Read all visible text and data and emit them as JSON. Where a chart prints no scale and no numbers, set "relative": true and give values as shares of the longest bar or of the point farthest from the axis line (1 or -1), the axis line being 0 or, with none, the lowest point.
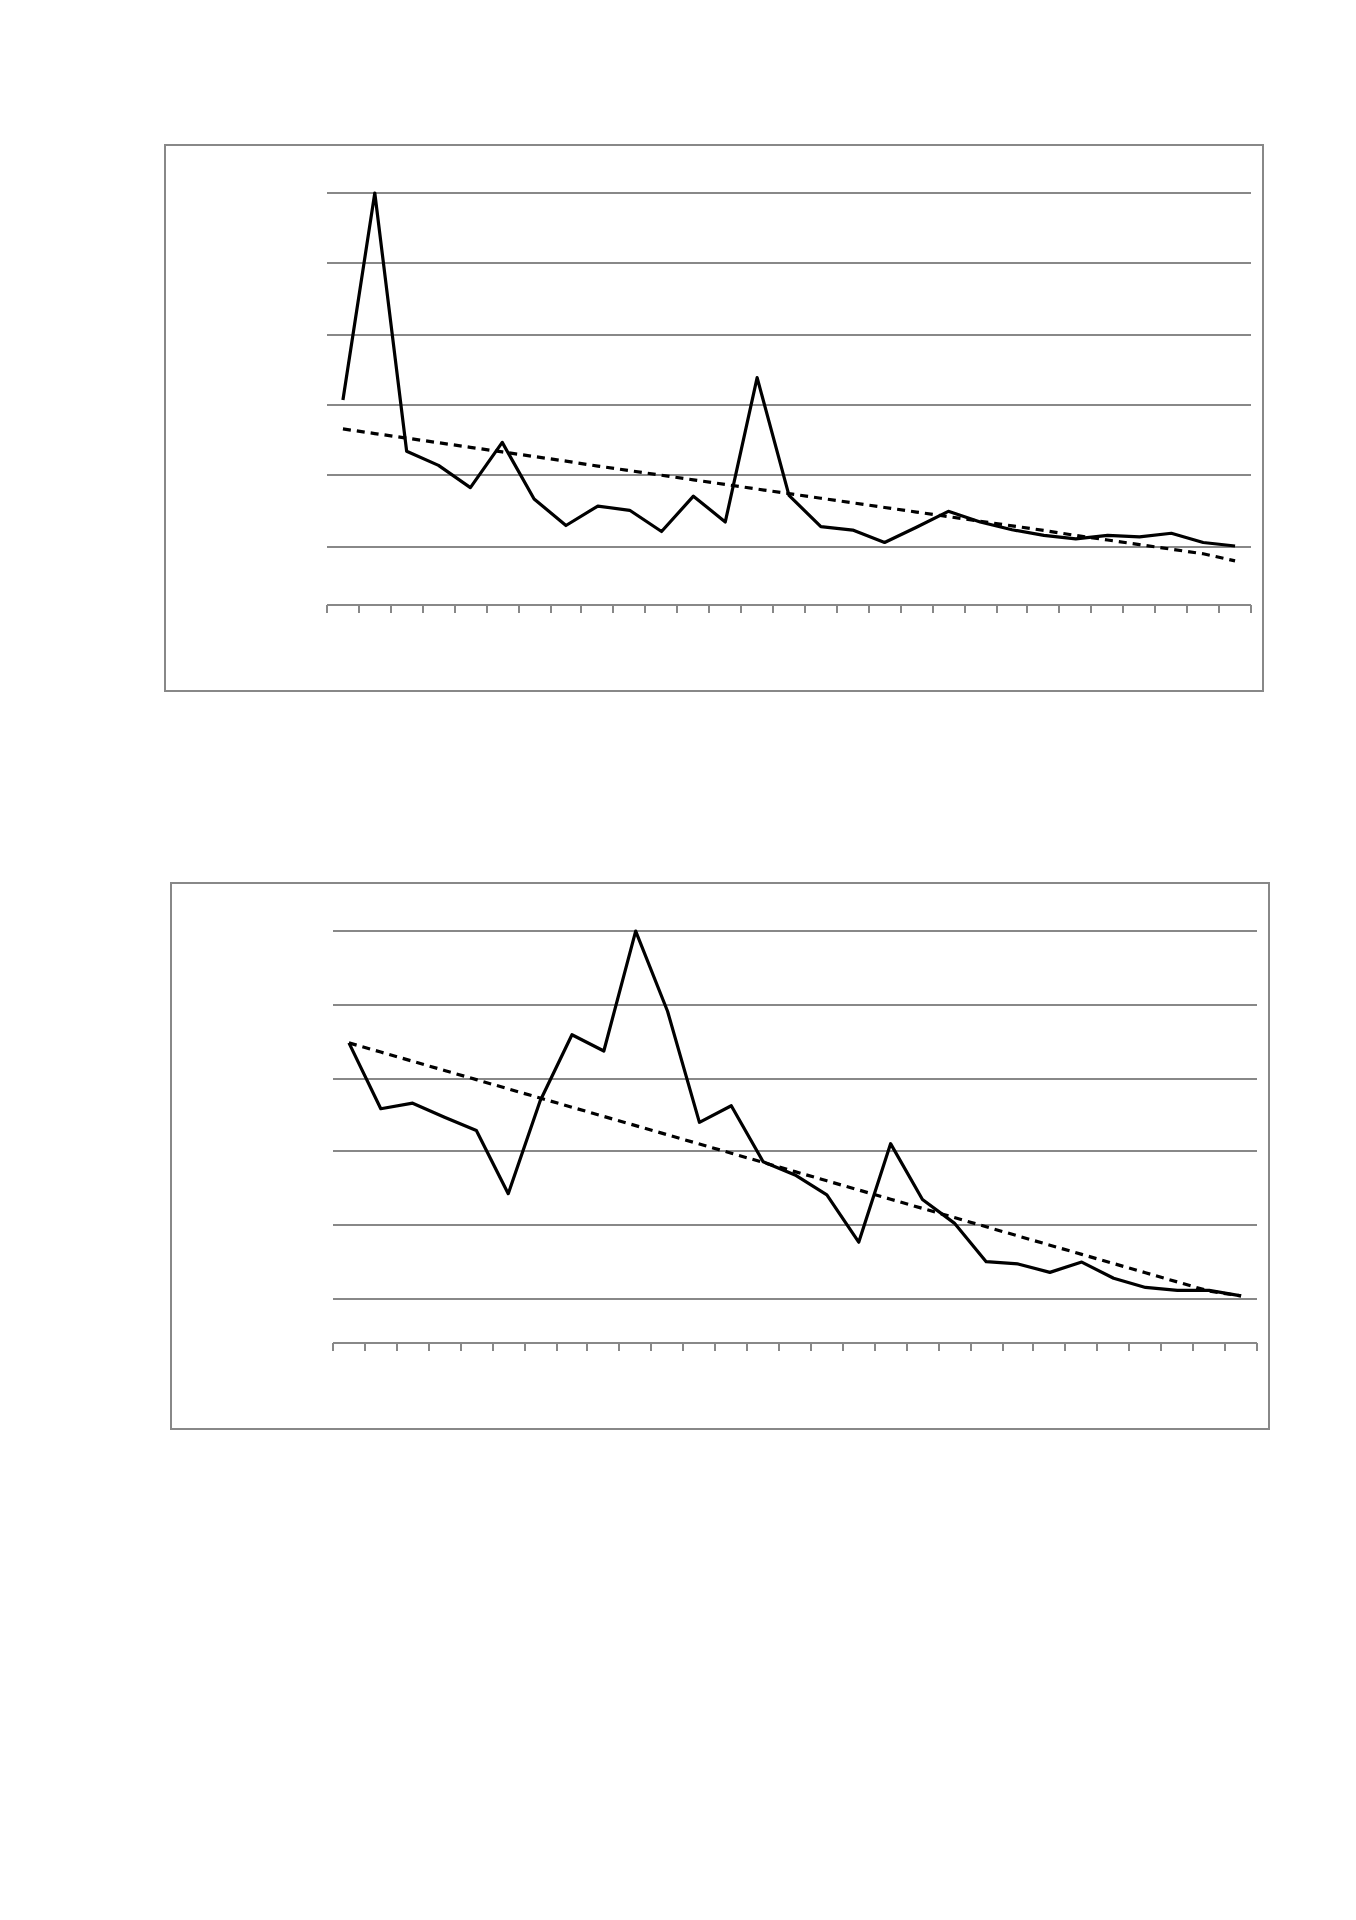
{
  "chart_data": [
    {
      "type": "line",
      "relative": true,
      "categories": [
        null,
        null,
        null,
        null,
        null,
        null,
        null,
        null,
        null,
        null,
        null,
        null,
        null,
        null,
        null,
        null,
        null,
        null,
        null,
        null,
        null,
        null,
        null,
        null,
        null,
        null,
        null,
        null,
        null
      ],
      "grid": "y",
      "tick_labels": false,
      "series": [
        {
          "color": "#000000",
          "line_style": "solid",
          "values": [
            0.415,
            1,
            0.27,
            0.23,
            0.167,
            0.295,
            0.135,
            0.06,
            0.115,
            0.103,
            0.043,
            0.143,
            0.07,
            0.478,
            0.145,
            0.057,
            0.047,
            0.012,
            0.055,
            0.1,
            0.07,
            0.048,
            0.032,
            0.022,
            0.032,
            0.028,
            0.038,
            0.012,
            0.002
          ]
        },
        {
          "color": "#000000",
          "line_style": "dashed",
          "values": [
            0.333,
            0.32,
            0.307,
            0.294,
            0.281,
            0.268,
            0.255,
            0.242,
            0.228,
            0.215,
            0.202,
            0.189,
            0.176,
            0.163,
            0.15,
            0.137,
            0.124,
            0.111,
            0.098,
            0.085,
            0.072,
            0.059,
            0.046,
            0.032,
            0.019,
            0.006,
            -0.007,
            -0.02,
            -0.04
          ]
        }
      ]
    },
    {
      "type": "line",
      "relative": true,
      "categories": [
        null,
        null,
        null,
        null,
        null,
        null,
        null,
        null,
        null,
        null,
        null,
        null,
        null,
        null,
        null,
        null,
        null,
        null,
        null,
        null,
        null,
        null,
        null,
        null,
        null,
        null,
        null,
        null,
        null
      ],
      "grid": "y",
      "tick_labels": false,
      "series": [
        {
          "color": "#000000",
          "line_style": "solid",
          "values": [
            0.696,
            0.517,
            0.532,
            0.494,
            0.458,
            0.286,
            0.538,
            0.718,
            0.674,
            1,
            0.782,
            0.48,
            0.525,
            0.373,
            0.337,
            0.283,
            0.154,
            0.422,
            0.27,
            0.206,
            0.101,
            0.095,
            0.072,
            0.1,
            0.056,
            0.031,
            0.023,
            0.023,
            0.008
          ]
        },
        {
          "color": "#000000",
          "line_style": "dashed",
          "values": [
            0.696,
            0.671,
            0.646,
            0.621,
            0.596,
            0.571,
            0.546,
            0.521,
            0.496,
            0.471,
            0.446,
            0.421,
            0.396,
            0.371,
            0.346,
            0.321,
            0.296,
            0.271,
            0.246,
            0.221,
            0.196,
            0.171,
            0.146,
            0.121,
            0.096,
            0.071,
            0.046,
            0.021,
            0.008
          ]
        }
      ]
    }
  ]
}
